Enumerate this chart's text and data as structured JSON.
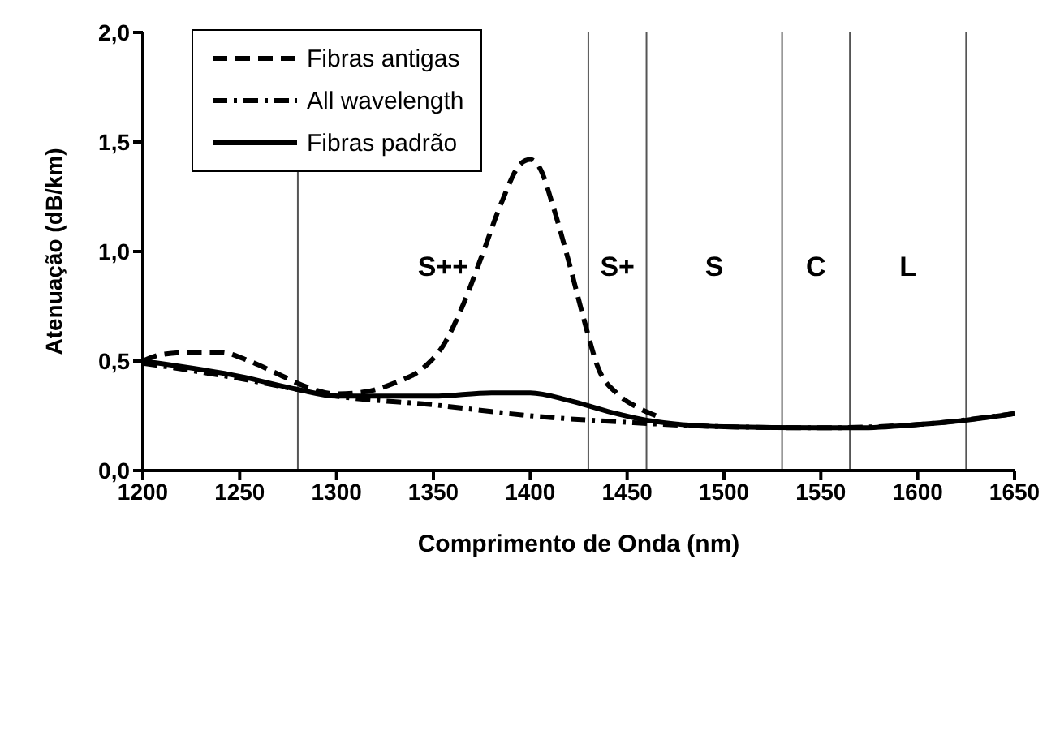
{
  "chart_data": {
    "type": "line",
    "xlabel": "Comprimento de Onda (nm)",
    "ylabel": "Atenuação (dB/km)",
    "xlim": [
      1200,
      1650
    ],
    "xticks": [
      1200,
      1250,
      1300,
      1350,
      1400,
      1450,
      1500,
      1550,
      1600,
      1650
    ],
    "ylim": [
      0,
      2
    ],
    "yticks": [
      {
        "value": 0,
        "label": "0,0"
      },
      {
        "value": 0.5,
        "label": "0,5"
      },
      {
        "value": 1,
        "label": "1,0"
      },
      {
        "value": 1.5,
        "label": "1,5"
      },
      {
        "value": 2,
        "label": "2,0"
      }
    ],
    "legend": "top left",
    "marker": "none",
    "series": [
      {
        "name": "Fibras antigas",
        "color": "#000000",
        "line_style": "dashed",
        "x": [
          1200,
          1210,
          1225,
          1240,
          1255,
          1270,
          1285,
          1300,
          1315,
          1330,
          1345,
          1355,
          1365,
          1375,
          1385,
          1395,
          1400,
          1405,
          1412,
          1420,
          1428,
          1435,
          1445,
          1455,
          1465
        ],
        "values": [
          0.5,
          0.53,
          0.54,
          0.54,
          0.5,
          0.44,
          0.38,
          0.35,
          0.36,
          0.4,
          0.47,
          0.57,
          0.75,
          0.98,
          1.22,
          1.4,
          1.42,
          1.38,
          1.2,
          0.95,
          0.68,
          0.47,
          0.35,
          0.29,
          0.25
        ]
      },
      {
        "name": "All wavelength",
        "color": "#000000",
        "line_style": "dashdot",
        "x": [
          1200,
          1250,
          1280,
          1300,
          1350,
          1400,
          1450,
          1500,
          1550,
          1600,
          1650
        ],
        "values": [
          0.49,
          0.42,
          0.37,
          0.34,
          0.3,
          0.25,
          0.22,
          0.2,
          0.195,
          0.21,
          0.26
        ]
      },
      {
        "name": "Fibras padrão",
        "color": "#000000",
        "line_style": "solid",
        "x": [
          1200,
          1250,
          1280,
          1300,
          1350,
          1380,
          1400,
          1420,
          1440,
          1460,
          1500,
          1550,
          1570,
          1600,
          1625,
          1650
        ],
        "values": [
          0.5,
          0.43,
          0.37,
          0.34,
          0.34,
          0.355,
          0.355,
          0.32,
          0.27,
          0.23,
          0.2,
          0.195,
          0.195,
          0.21,
          0.23,
          0.26
        ]
      }
    ],
    "ref_lines": [
      {
        "axis": "x",
        "value": 1280,
        "color": "#555555"
      },
      {
        "axis": "x",
        "value": 1430,
        "color": "#555555"
      },
      {
        "axis": "x",
        "value": 1460,
        "color": "#555555"
      },
      {
        "axis": "x",
        "value": 1530,
        "color": "#555555"
      },
      {
        "axis": "x",
        "value": 1565,
        "color": "#555555"
      },
      {
        "axis": "x",
        "value": 1625,
        "color": "#555555"
      }
    ],
    "annotations": [
      "S++",
      "S+",
      "S",
      "C",
      "L"
    ]
  }
}
